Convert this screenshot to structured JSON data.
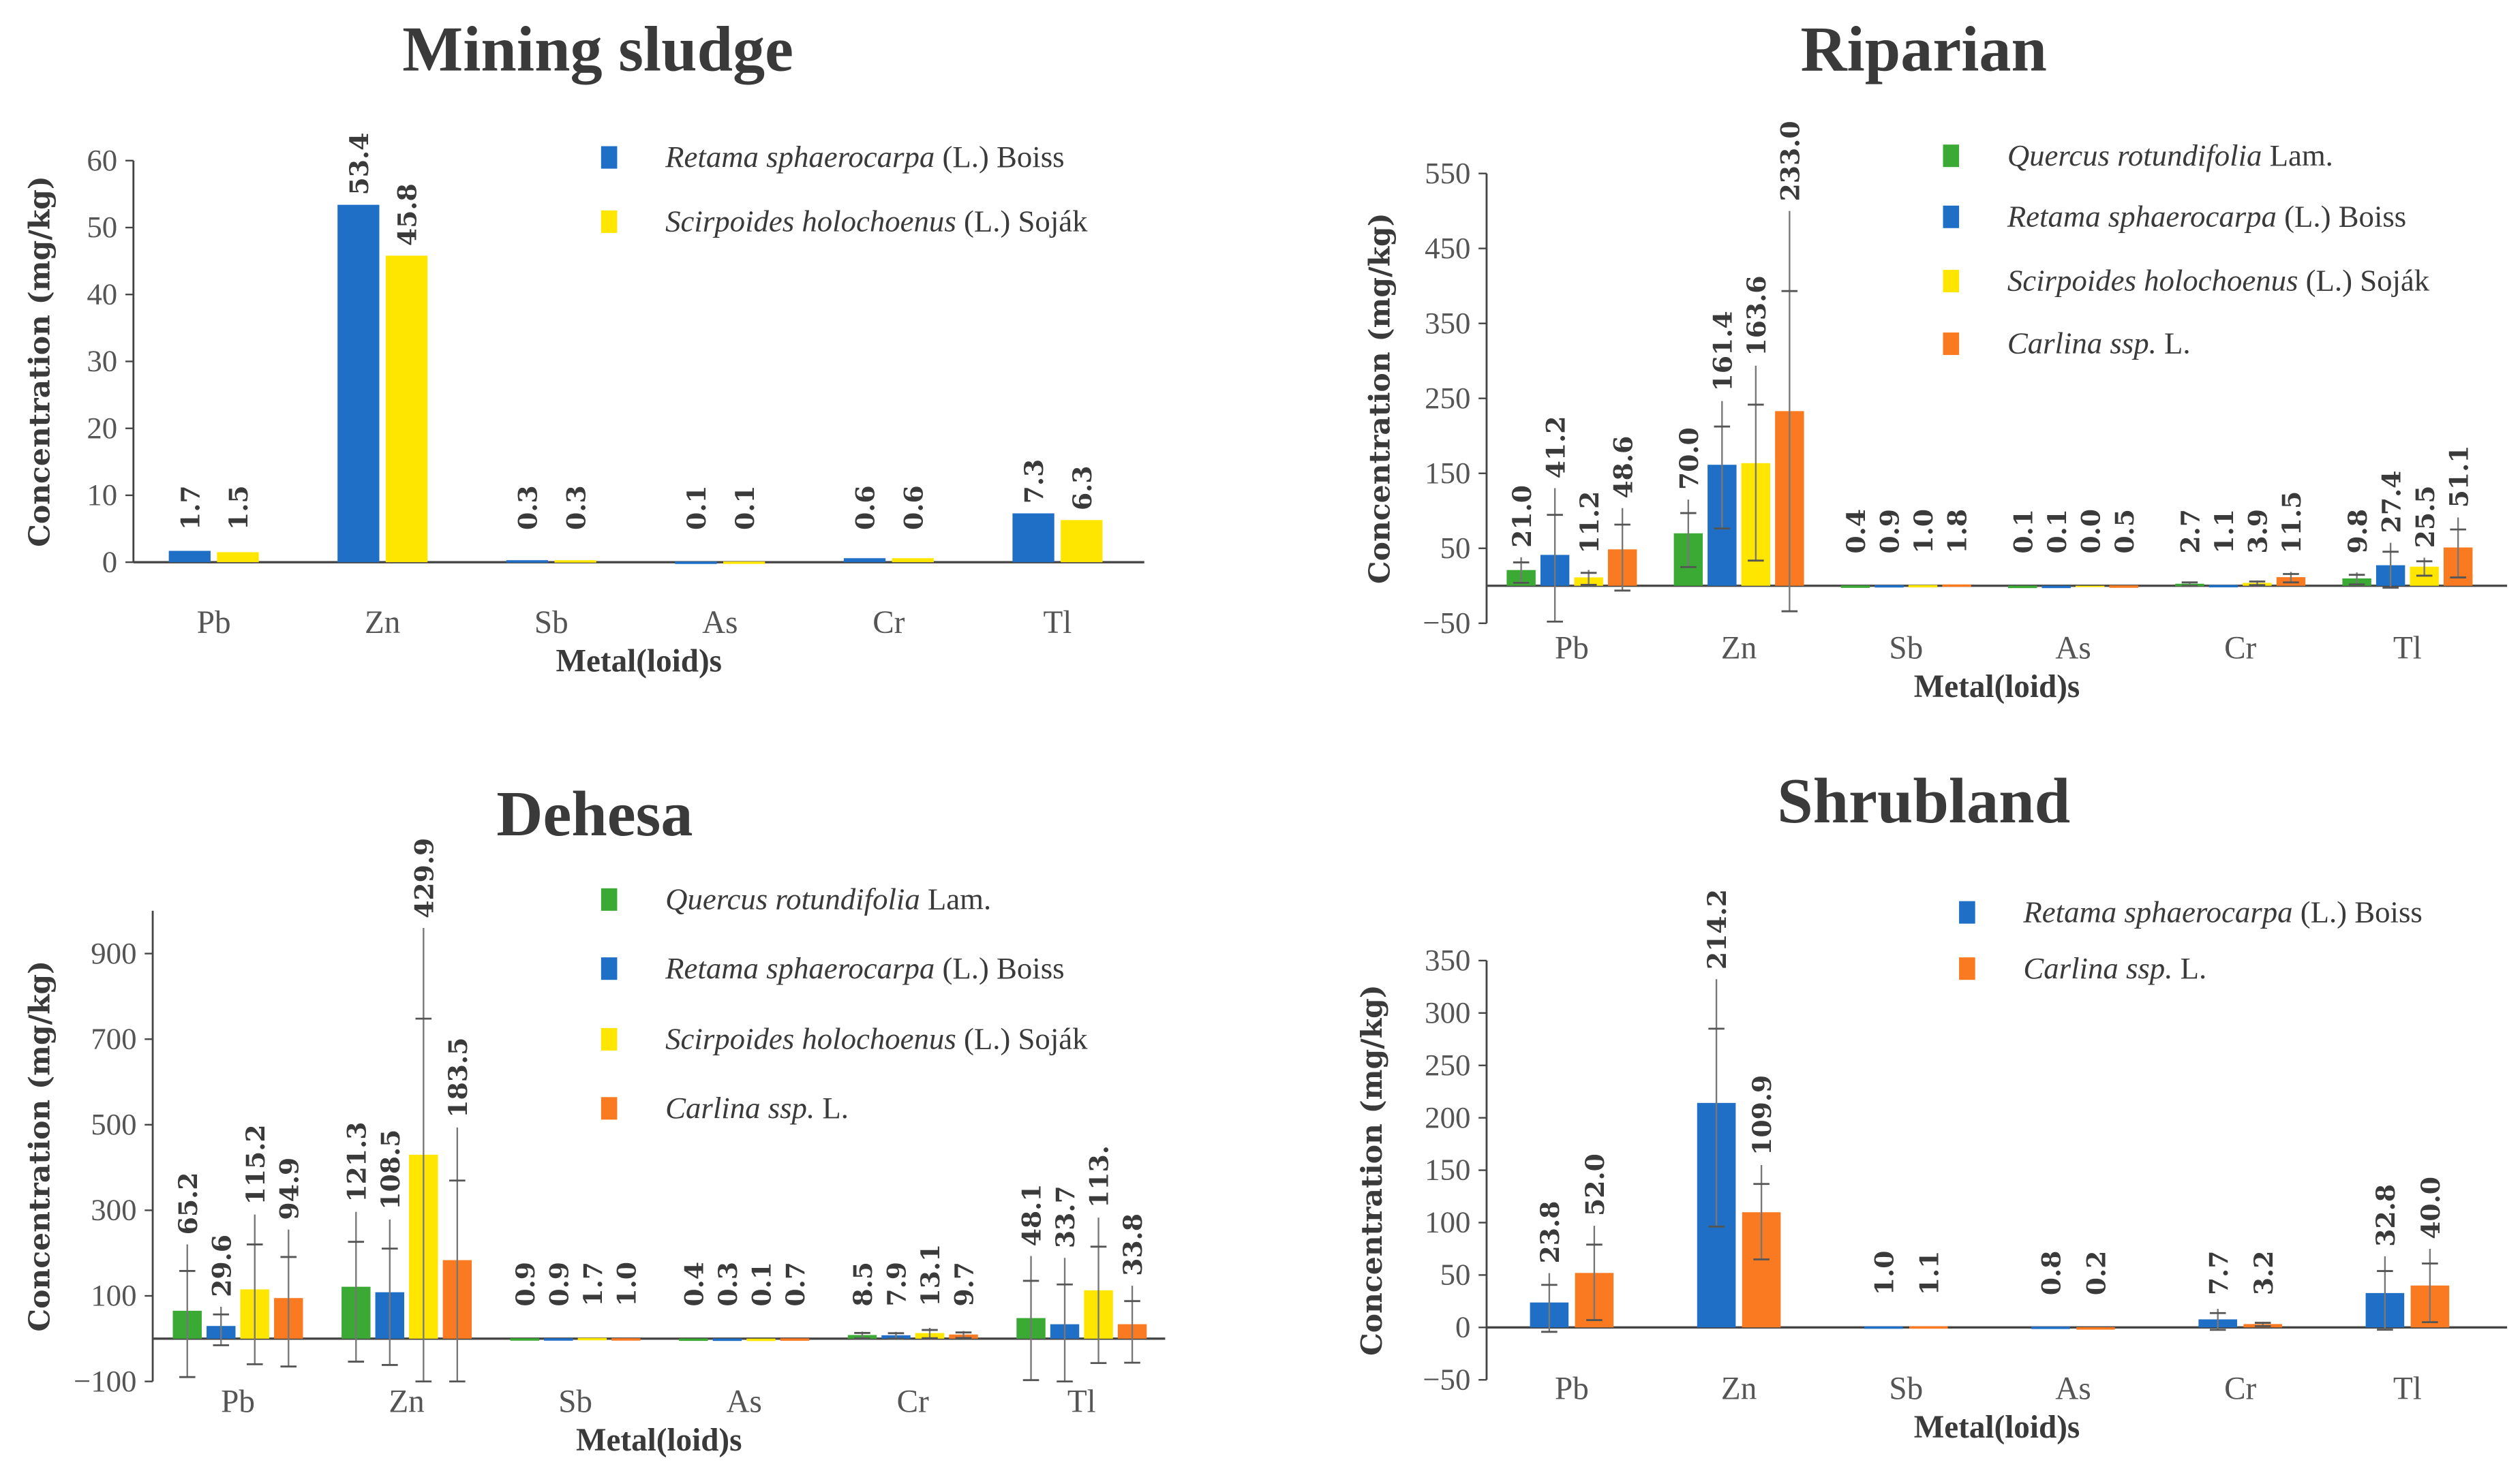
{
  "colors": {
    "quercus": "#3aaa35",
    "retama": "#1f6fc6",
    "scirpoides": "#ffe600",
    "carlina": "#f97a20"
  },
  "chart_data": [
    {
      "type": "bar",
      "title": "Mining sludge",
      "xlabel": "Metal(loid)s",
      "ylabel": "Concentration (mg/kg)",
      "ylim": [
        0,
        60
      ],
      "yticks": [
        0,
        10,
        20,
        30,
        40,
        50,
        60
      ],
      "legend": "top-right",
      "categories": [
        "Pb",
        "Zn",
        "Sb",
        "As",
        "Cr",
        "Tl"
      ],
      "series": [
        {
          "name": "Retama sphaerocarpa",
          "suffix": " (L.) Boiss",
          "color_key": "retama",
          "values": [
            1.7,
            53.4,
            0.3,
            0.1,
            0.6,
            7.3
          ],
          "labels": [
            "1.7",
            "53.4",
            "0.3",
            "0.1",
            "0.6",
            "7.3"
          ],
          "errors": [
            0,
            0,
            0,
            0,
            0,
            0
          ]
        },
        {
          "name": "Scirpoides holochoenus",
          "suffix": " (L.) Soják",
          "color_key": "scirpoides",
          "values": [
            1.5,
            45.8,
            0.3,
            0.1,
            0.6,
            6.3
          ],
          "labels": [
            "1.5",
            "45.8",
            "0.3",
            "0.1",
            "0.6",
            "6.3"
          ],
          "errors": [
            0,
            0,
            0,
            0,
            0,
            0
          ]
        }
      ]
    },
    {
      "type": "bar",
      "title": "Riparian",
      "xlabel": "Metal(loid)s",
      "ylabel": "Concentration (mg/kg)",
      "ylim": [
        -50,
        550
      ],
      "yticks": [
        -50,
        50,
        150,
        250,
        350,
        450,
        550
      ],
      "legend": "top-right",
      "categories": [
        "Pb",
        "Zn",
        "Sb",
        "As",
        "Cr",
        "Tl"
      ],
      "series": [
        {
          "name": "Quercus rotundifolia",
          "suffix": " Lam.",
          "color_key": "quercus",
          "values": [
            21.0,
            70.0,
            0.4,
            0.1,
            2.7,
            9.8
          ],
          "labels": [
            "21.0",
            "70.0",
            "0.4",
            "0.1",
            "2.7",
            "9.8"
          ],
          "errors": [
            17,
            45,
            0,
            0,
            3,
            8
          ]
        },
        {
          "name": "Retama sphaerocarpa",
          "suffix": " (L.) Boiss",
          "color_key": "retama",
          "values": [
            41.2,
            161.4,
            0.9,
            0.1,
            1.1,
            27.4
          ],
          "labels": [
            "41.2",
            "161.4",
            "0.9",
            "0.1",
            "1.1",
            "27.4"
          ],
          "errors": [
            89,
            85,
            0,
            0,
            0,
            30
          ]
        },
        {
          "name": "Scirpoides holochoenus",
          "suffix": " (L.) Soják",
          "color_key": "scirpoides",
          "values": [
            11.2,
            163.6,
            1.0,
            0.0,
            3.9,
            25.5
          ],
          "labels": [
            "11.2",
            "163.6",
            "1.0",
            "0.0",
            "3.9",
            "25.5"
          ],
          "errors": [
            10,
            130,
            0,
            0,
            3,
            12
          ]
        },
        {
          "name": "Carlina ssp.",
          "suffix": " L.",
          "color_key": "carlina",
          "values": [
            48.6,
            233.0,
            1.8,
            0.5,
            11.5,
            51.1
          ],
          "labels": [
            "48.6",
            "233.0",
            "1.8",
            "0.5",
            "11.5",
            "51.1"
          ],
          "errors": [
            55,
            267,
            0,
            0,
            7,
            40
          ]
        }
      ]
    },
    {
      "type": "bar",
      "title": "Dehesa",
      "xlabel": "Metal(loid)s",
      "ylabel": "Concentration (mg/kg)",
      "ylim": [
        -100,
        1000
      ],
      "yticks": [
        -100,
        100,
        300,
        500,
        700,
        900
      ],
      "legend": "top-right",
      "categories": [
        "Pb",
        "Zn",
        "Sb",
        "As",
        "Cr",
        "Tl"
      ],
      "series": [
        {
          "name": "Quercus rotundifolia",
          "suffix": " Lam.",
          "color_key": "quercus",
          "values": [
            65.2,
            121.3,
            0.9,
            0.4,
            8.5,
            48.1
          ],
          "labels": [
            "65.2",
            "121.3",
            "0.9",
            "0.4",
            "8.5",
            "48.1"
          ],
          "errors": [
            155,
            175,
            0,
            0,
            8,
            145
          ]
        },
        {
          "name": "Retama sphaerocarpa",
          "suffix": " (L.) Boiss",
          "color_key": "retama",
          "values": [
            29.6,
            108.5,
            0.9,
            0.3,
            7.9,
            33.7
          ],
          "labels": [
            "29.6",
            "108.5",
            "0.9",
            "0.3",
            "7.9",
            "33.7"
          ],
          "errors": [
            45,
            170,
            0,
            0,
            8,
            155
          ]
        },
        {
          "name": "Scirpoides holochoenus",
          "suffix": " (L.) Soják",
          "color_key": "scirpoides",
          "values": [
            115.2,
            429.9,
            1.7,
            0.1,
            13.1,
            113.0
          ],
          "labels": [
            "115.2",
            "429.9",
            "1.7",
            "0.1",
            "13.1",
            "113."
          ],
          "errors": [
            175,
            530,
            0,
            0,
            12,
            170
          ]
        },
        {
          "name": "Carlina ssp.",
          "suffix": " L.",
          "color_key": "carlina",
          "values": [
            94.9,
            183.5,
            1.0,
            0.7,
            9.7,
            33.8
          ],
          "labels": [
            "94.9",
            "183.5",
            "1.0",
            "0.7",
            "9.7",
            "33.8"
          ],
          "errors": [
            160,
            310,
            0,
            0,
            8,
            90
          ]
        }
      ]
    },
    {
      "type": "bar",
      "title": "Shrubland",
      "xlabel": "Metal(loid)s",
      "ylabel": "Concentration (mg/kg)",
      "ylim": [
        -50,
        350
      ],
      "yticks": [
        -50,
        0,
        50,
        100,
        150,
        200,
        250,
        300,
        350
      ],
      "legend": "top-right",
      "categories": [
        "Pb",
        "Zn",
        "Sb",
        "As",
        "Cr",
        "Tl"
      ],
      "series": [
        {
          "name": "Retama sphaerocarpa",
          "suffix": " (L.) Boiss",
          "color_key": "retama",
          "values": [
            23.8,
            214.2,
            1.0,
            0.8,
            7.7,
            32.8
          ],
          "labels": [
            "23.8",
            "214.2",
            "1.0",
            "0.8",
            "7.7",
            "32.8"
          ],
          "errors": [
            28,
            118,
            0,
            0,
            10,
            35
          ]
        },
        {
          "name": "Carlina ssp.",
          "suffix": " L.",
          "color_key": "carlina",
          "values": [
            52.0,
            109.9,
            1.1,
            0.2,
            3.2,
            40.0
          ],
          "labels": [
            "52.0",
            "109.9",
            "1.1",
            "0.2",
            "3.2",
            "40.0"
          ],
          "errors": [
            45,
            45,
            0,
            0,
            2,
            35
          ]
        }
      ]
    }
  ]
}
